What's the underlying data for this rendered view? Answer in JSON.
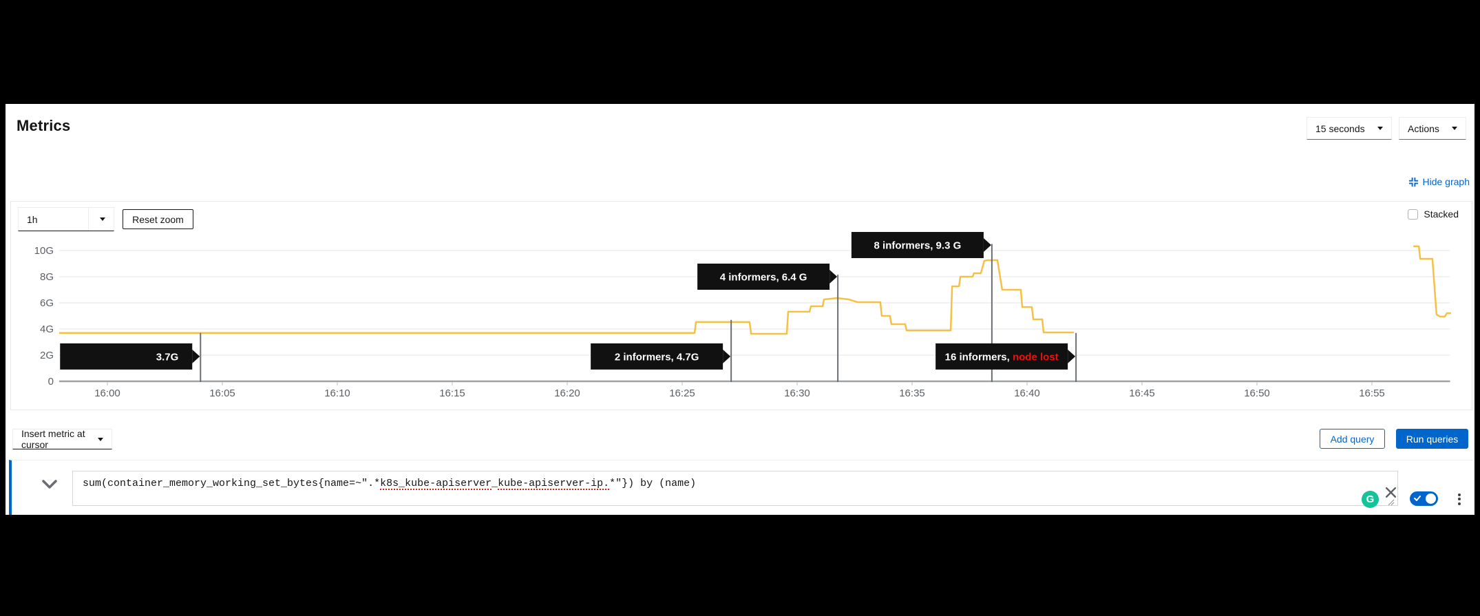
{
  "page": {
    "title": "Metrics"
  },
  "header": {
    "interval_select": "15 seconds",
    "actions_label": "Actions"
  },
  "graph_controls": {
    "hide_graph_label": "Hide graph",
    "timespan": "1h",
    "reset_zoom_label": "Reset zoom",
    "stacked_label": "Stacked",
    "stacked_checked": false
  },
  "chart_data": {
    "type": "line",
    "title": "",
    "x_axis": {
      "tick_labels": [
        "16:00",
        "16:05",
        "16:10",
        "16:15",
        "16:20",
        "16:25",
        "16:30",
        "16:35",
        "16:40",
        "16:45",
        "16:50",
        "16:55"
      ],
      "tick_interval_minutes": 5,
      "domain_minutes_from_1600": [
        -2.1,
        58.4
      ],
      "grid": false
    },
    "y_axis": {
      "tick_labels": [
        "0",
        "2G",
        "4G",
        "6G",
        "8G",
        "10G"
      ],
      "unit": "G",
      "range_gb": [
        0,
        10
      ],
      "grid": true
    },
    "legend": "none",
    "series": [
      {
        "name": "sum(container_memory_working_set_bytes{name=~\".*k8s_kube-apiserver_kube-apiserver-ip.*\"}) by (name)",
        "color": "#f4c145",
        "note": "points are [minutes_after_16:00, gigabytes]; two segments because data stops at node loss and resumes near 16:57",
        "segments": [
          [
            [
              -2.1,
              3.7
            ],
            [
              25.54,
              3.7
            ],
            [
              25.6,
              4.53
            ],
            [
              27.93,
              4.53
            ],
            [
              28.0,
              3.63
            ],
            [
              29.55,
              3.63
            ],
            [
              29.61,
              5.32
            ],
            [
              30.54,
              5.32
            ],
            [
              30.6,
              5.74
            ],
            [
              31.11,
              5.74
            ],
            [
              31.17,
              6.26
            ],
            [
              31.74,
              6.37
            ],
            [
              32.25,
              6.26
            ],
            [
              32.63,
              6.05
            ],
            [
              33.62,
              6.05
            ],
            [
              33.68,
              5.0
            ],
            [
              34.04,
              5.0
            ],
            [
              34.1,
              4.37
            ],
            [
              34.7,
              4.37
            ],
            [
              34.76,
              3.89
            ],
            [
              36.68,
              3.89
            ],
            [
              36.74,
              7.26
            ],
            [
              37.04,
              7.26
            ],
            [
              37.1,
              8.0
            ],
            [
              37.63,
              8.0
            ],
            [
              37.69,
              8.26
            ],
            [
              37.99,
              8.26
            ],
            [
              38.14,
              9.21
            ],
            [
              38.26,
              9.26
            ],
            [
              38.71,
              9.26
            ],
            [
              38.92,
              7.0
            ],
            [
              39.73,
              7.0
            ],
            [
              39.79,
              5.68
            ],
            [
              40.21,
              5.68
            ],
            [
              40.27,
              4.74
            ],
            [
              40.66,
              4.74
            ],
            [
              40.72,
              3.74
            ],
            [
              42.04,
              3.74
            ]
          ],
          [
            [
              56.8,
              10.32
            ],
            [
              57.04,
              10.32
            ],
            [
              57.1,
              9.37
            ],
            [
              57.63,
              9.37
            ],
            [
              57.81,
              5.11
            ],
            [
              57.96,
              4.95
            ],
            [
              58.17,
              4.95
            ],
            [
              58.26,
              5.21
            ],
            [
              58.44,
              5.21
            ]
          ]
        ]
      }
    ],
    "annotations": [
      {
        "text": "3.7G",
        "red_text": "",
        "minute": 4.05,
        "line_top_gb": 3.7,
        "arrow_gb": 1.9,
        "align": "right"
      },
      {
        "text": "2 informers, 4.7G",
        "red_text": "",
        "minute": 27.13,
        "line_top_gb": 4.7,
        "arrow_gb": 1.9,
        "align": "center"
      },
      {
        "text": "4 informers, 6.4 G",
        "red_text": "",
        "minute": 31.77,
        "line_top_gb": 8.15,
        "arrow_gb": 8.0,
        "align": "center"
      },
      {
        "text": "8 informers, 9.3 G",
        "red_text": "",
        "minute": 38.47,
        "line_top_gb": 10.5,
        "arrow_gb": 10.42,
        "align": "center"
      },
      {
        "text": "16 informers, ",
        "red_text": "node lost",
        "minute": 42.13,
        "line_top_gb": 3.7,
        "arrow_gb": 1.9,
        "align": "center"
      }
    ],
    "colors": {
      "tooltip_bg": "#111111",
      "tooltip_text": "#ffffff",
      "alert_red": "#ee0f0f",
      "grid": "#ededed",
      "axis": "#9fa2a5",
      "tick": "#d2d2d2",
      "tick_text": "#5a5e63",
      "annotation_line": "#6a6e73"
    }
  },
  "query_toolbar": {
    "insert_metric_label": "Insert metric at cursor",
    "add_query_label": "Add query",
    "run_queries_label": "Run queries"
  },
  "query_row": {
    "expression": "sum(container_memory_working_set_bytes{name=~\".*k8s_kube-apiserver_kube-apiserver-ip.*\"}) by (name)",
    "expression_segments": [
      {
        "text": "sum(container_memory_working_set_bytes{name=~\".*",
        "flagged": false
      },
      {
        "text": "k8s_kube-apiserver",
        "flagged": true
      },
      {
        "text": "_",
        "flagged": false
      },
      {
        "text": "kube-apiserver-ip.",
        "flagged": true
      },
      {
        "text": "*\"}) by (name)",
        "flagged": false
      }
    ],
    "grammarly_letter": "G",
    "query_enabled": true
  },
  "colors": {
    "accent": "#0066cc",
    "series_gold": "#f4c145"
  }
}
